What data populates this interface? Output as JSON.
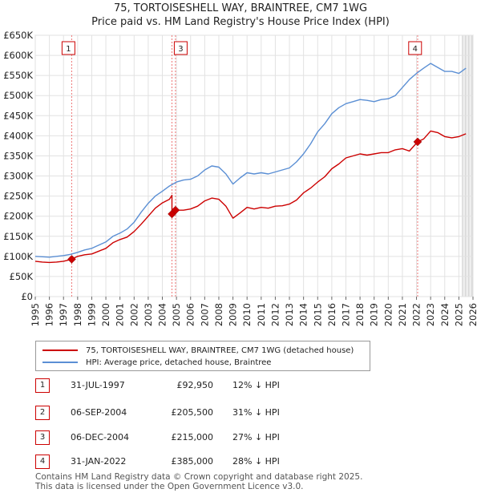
{
  "chart_data": {
    "type": "line",
    "title": "75, TORTOISESHELL WAY, BRAINTREE, CM7 1WG",
    "subtitle": "Price paid vs. HM Land Registry's House Price Index (HPI)",
    "xlabel": "",
    "ylabel": "",
    "xlim": [
      1995,
      2026
    ],
    "ylim": [
      0,
      650000
    ],
    "x_ticks": [
      "1995",
      "1996",
      "1997",
      "1998",
      "1999",
      "2000",
      "2001",
      "2002",
      "2003",
      "2004",
      "2005",
      "2006",
      "2007",
      "2008",
      "2009",
      "2010",
      "2011",
      "2012",
      "2013",
      "2014",
      "2015",
      "2016",
      "2017",
      "2018",
      "2019",
      "2020",
      "2021",
      "2022",
      "2023",
      "2024",
      "2025",
      "2026"
    ],
    "y_ticks": [
      {
        "value": 0,
        "label": "£0"
      },
      {
        "value": 50000,
        "label": "£50K"
      },
      {
        "value": 100000,
        "label": "£100K"
      },
      {
        "value": 150000,
        "label": "£150K"
      },
      {
        "value": 200000,
        "label": "£200K"
      },
      {
        "value": 250000,
        "label": "£250K"
      },
      {
        "value": 300000,
        "label": "£300K"
      },
      {
        "value": 350000,
        "label": "£350K"
      },
      {
        "value": 400000,
        "label": "£400K"
      },
      {
        "value": 450000,
        "label": "£450K"
      },
      {
        "value": 500000,
        "label": "£500K"
      },
      {
        "value": 550000,
        "label": "£550K"
      },
      {
        "value": 600000,
        "label": "£600K"
      },
      {
        "value": 650000,
        "label": "£650K"
      }
    ],
    "grid": true,
    "projection_start": 2025.25,
    "series": [
      {
        "name": "75, TORTOISESHELL WAY, BRAINTREE, CM7 1WG (detached house)",
        "color": "#cc0000",
        "x": [
          1995.0,
          1995.5,
          1996.0,
          1996.5,
          1997.0,
          1997.58,
          1998.0,
          1998.5,
          1999.0,
          1999.5,
          2000.0,
          2000.5,
          2001.0,
          2001.5,
          2002.0,
          2002.5,
          2003.0,
          2003.5,
          2004.0,
          2004.5,
          2004.68,
          2004.68,
          2004.93,
          2005.5,
          2006.0,
          2006.5,
          2007.0,
          2007.5,
          2008.0,
          2008.5,
          2009.0,
          2009.5,
          2010.0,
          2010.5,
          2011.0,
          2011.5,
          2012.0,
          2012.5,
          2013.0,
          2013.5,
          2014.0,
          2014.5,
          2015.0,
          2015.5,
          2016.0,
          2016.5,
          2017.0,
          2017.5,
          2018.0,
          2018.5,
          2019.0,
          2019.5,
          2020.0,
          2020.5,
          2021.0,
          2021.5,
          2022.08,
          2022.5,
          2023.0,
          2023.5,
          2024.0,
          2024.5,
          2025.0,
          2025.5
        ],
        "y": [
          88000,
          86000,
          85000,
          86000,
          88000,
          92950,
          100000,
          104000,
          106000,
          113000,
          120000,
          134000,
          142000,
          148000,
          162000,
          180000,
          200000,
          220000,
          233000,
          242000,
          252000,
          205500,
          215000,
          215000,
          218000,
          225000,
          238000,
          245000,
          242000,
          225000,
          195000,
          208000,
          222000,
          218000,
          222000,
          220000,
          225000,
          226000,
          230000,
          240000,
          258000,
          270000,
          285000,
          298000,
          318000,
          330000,
          345000,
          350000,
          355000,
          352000,
          355000,
          358000,
          358000,
          365000,
          368000,
          362000,
          385000,
          392000,
          412000,
          408000,
          398000,
          395000,
          398000,
          405000
        ]
      },
      {
        "name": "HPI: Average price, detached house, Braintree",
        "color": "#5b8fd4",
        "x": [
          1995.0,
          1995.5,
          1996.0,
          1996.5,
          1997.0,
          1997.5,
          1998.0,
          1998.5,
          1999.0,
          1999.5,
          2000.0,
          2000.5,
          2001.0,
          2001.5,
          2002.0,
          2002.5,
          2003.0,
          2003.5,
          2004.0,
          2004.5,
          2005.0,
          2005.5,
          2006.0,
          2006.5,
          2007.0,
          2007.5,
          2008.0,
          2008.5,
          2009.0,
          2009.5,
          2010.0,
          2010.5,
          2011.0,
          2011.5,
          2012.0,
          2012.5,
          2013.0,
          2013.5,
          2014.0,
          2014.5,
          2015.0,
          2015.5,
          2016.0,
          2016.5,
          2017.0,
          2017.5,
          2018.0,
          2018.5,
          2019.0,
          2019.5,
          2020.0,
          2020.5,
          2021.0,
          2021.5,
          2022.0,
          2022.5,
          2023.0,
          2023.5,
          2024.0,
          2024.5,
          2025.0,
          2025.5
        ],
        "y": [
          100000,
          99000,
          98000,
          100000,
          102000,
          105000,
          110000,
          116000,
          120000,
          128000,
          136000,
          150000,
          158000,
          168000,
          185000,
          210000,
          232000,
          250000,
          262000,
          275000,
          285000,
          290000,
          292000,
          300000,
          315000,
          325000,
          322000,
          305000,
          280000,
          295000,
          308000,
          305000,
          308000,
          305000,
          310000,
          315000,
          320000,
          335000,
          355000,
          380000,
          410000,
          430000,
          455000,
          470000,
          480000,
          485000,
          490000,
          488000,
          485000,
          490000,
          492000,
          500000,
          520000,
          540000,
          555000,
          568000,
          580000,
          570000,
          560000,
          560000,
          555000,
          568000
        ]
      }
    ],
    "sales": [
      {
        "n": "1",
        "x": 1997.58,
        "price": 92950,
        "date": "31-JUL-1997",
        "price_label": "£92,950",
        "hpi_label": "12% ↓ HPI"
      },
      {
        "n": "2",
        "x": 2004.68,
        "price": 205500,
        "date": "06-SEP-2004",
        "price_label": "£205,500",
        "hpi_label": "31% ↓ HPI"
      },
      {
        "n": "3",
        "x": 2004.93,
        "price": 215000,
        "date": "06-DEC-2004",
        "price_label": "£215,000",
        "hpi_label": "27% ↓ HPI"
      },
      {
        "n": "4",
        "x": 2022.08,
        "price": 385000,
        "date": "31-JAN-2022",
        "price_label": "£385,000",
        "hpi_label": "28% ↓ HPI"
      }
    ],
    "marker_boxes": [
      {
        "n": "1",
        "x": 1997.35
      },
      {
        "n": "3",
        "x": 2005.3
      },
      {
        "n": "4",
        "x": 2021.9
      }
    ]
  },
  "footer": {
    "line1": "Contains HM Land Registry data © Crown copyright and database right 2025.",
    "line2": "This data is licensed under the Open Government Licence v3.0."
  }
}
